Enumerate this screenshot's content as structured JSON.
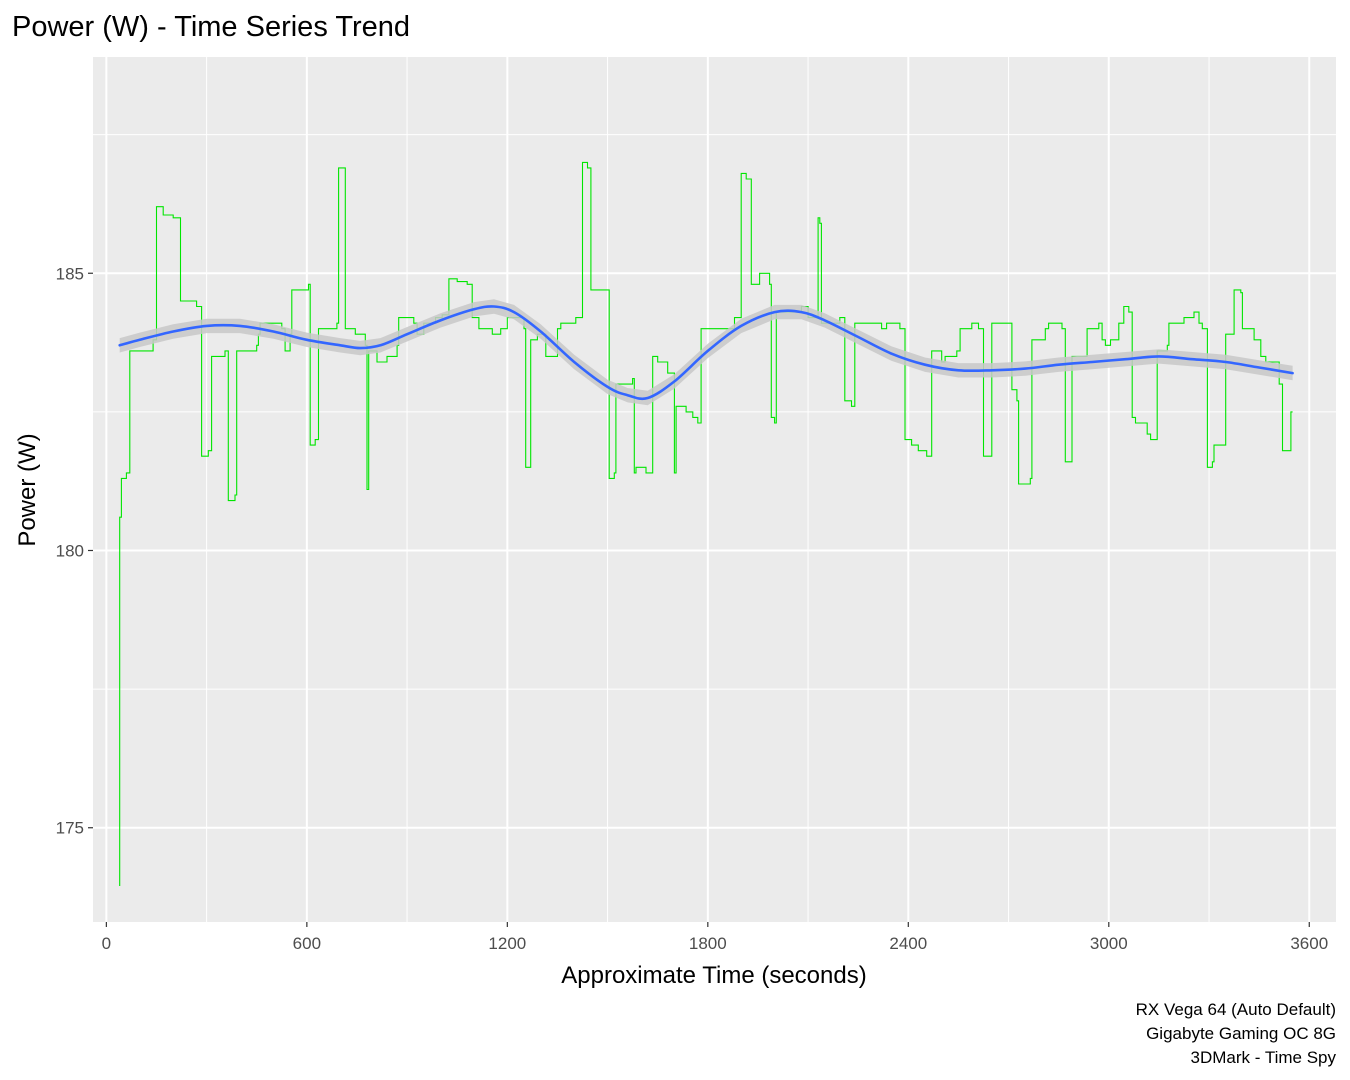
{
  "chart_data": {
    "type": "line",
    "title": "Power (W) - Time Series Trend",
    "xlabel": "Approximate Time (seconds)",
    "ylabel": "Power (W)",
    "xlim": [
      -40,
      3680
    ],
    "ylim": [
      173.3,
      188.9
    ],
    "x_ticks": [
      0,
      600,
      1200,
      1800,
      2400,
      3000,
      3600
    ],
    "y_ticks": [
      175,
      180,
      185
    ],
    "grid": true,
    "caption": [
      "RX Vega 64 (Auto Default)",
      "Gigabyte Gaming OC 8G",
      "3DMark - Time Spy"
    ],
    "colors": {
      "panel": "#ebebeb",
      "grid": "#ffffff",
      "raw_line": "#00e600",
      "trend_line": "#3366ff",
      "ribbon": "#c8c8c8"
    },
    "series": [
      {
        "style": "step",
        "points": [
          [
            40,
            173.95
          ],
          [
            40,
            180.6
          ],
          [
            45,
            181.3
          ],
          [
            60,
            181.4
          ],
          [
            70,
            183.6
          ],
          [
            140,
            183.8
          ],
          [
            150,
            186.2
          ],
          [
            170,
            186.05
          ],
          [
            200,
            186.0
          ],
          [
            222,
            184.5
          ],
          [
            270,
            184.4
          ],
          [
            285,
            181.7
          ],
          [
            305,
            181.8
          ],
          [
            315,
            183.5
          ],
          [
            355,
            183.6
          ],
          [
            365,
            180.9
          ],
          [
            385,
            181.0
          ],
          [
            390,
            183.6
          ],
          [
            450,
            183.7
          ],
          [
            455,
            183.9
          ],
          [
            460,
            184.1
          ],
          [
            525,
            184.0
          ],
          [
            535,
            183.6
          ],
          [
            550,
            183.9
          ],
          [
            555,
            184.7
          ],
          [
            605,
            184.8
          ],
          [
            610,
            181.9
          ],
          [
            625,
            182.0
          ],
          [
            635,
            184.0
          ],
          [
            690,
            184.1
          ],
          [
            695,
            186.9
          ],
          [
            705,
            186.9
          ],
          [
            715,
            184.0
          ],
          [
            745,
            183.9
          ],
          [
            775,
            183.7
          ],
          [
            780,
            181.1
          ],
          [
            785,
            183.6
          ],
          [
            800,
            183.6
          ],
          [
            810,
            183.4
          ],
          [
            840,
            183.5
          ],
          [
            870,
            183.7
          ],
          [
            875,
            184.2
          ],
          [
            920,
            184.1
          ],
          [
            930,
            183.9
          ],
          [
            950,
            184.1
          ],
          [
            985,
            184.2
          ],
          [
            1005,
            184.25
          ],
          [
            1025,
            184.9
          ],
          [
            1050,
            184.85
          ],
          [
            1080,
            184.8
          ],
          [
            1095,
            184.2
          ],
          [
            1115,
            184.0
          ],
          [
            1155,
            183.9
          ],
          [
            1180,
            184.0
          ],
          [
            1200,
            184.2
          ],
          [
            1250,
            184.0
          ],
          [
            1255,
            181.5
          ],
          [
            1265,
            181.5
          ],
          [
            1270,
            183.8
          ],
          [
            1290,
            183.9
          ],
          [
            1315,
            183.5
          ],
          [
            1350,
            184.0
          ],
          [
            1360,
            184.1
          ],
          [
            1405,
            184.2
          ],
          [
            1425,
            187.0
          ],
          [
            1440,
            186.9
          ],
          [
            1450,
            184.7
          ],
          [
            1500,
            184.7
          ],
          [
            1505,
            181.3
          ],
          [
            1520,
            181.4
          ],
          [
            1525,
            183.0
          ],
          [
            1575,
            183.1
          ],
          [
            1580,
            181.4
          ],
          [
            1585,
            181.5
          ],
          [
            1615,
            181.4
          ],
          [
            1635,
            183.5
          ],
          [
            1650,
            183.4
          ],
          [
            1680,
            183.2
          ],
          [
            1700,
            181.4
          ],
          [
            1705,
            182.6
          ],
          [
            1730,
            182.6
          ],
          [
            1735,
            182.5
          ],
          [
            1755,
            182.4
          ],
          [
            1770,
            182.3
          ],
          [
            1780,
            184.0
          ],
          [
            1830,
            184.0
          ],
          [
            1880,
            184.2
          ],
          [
            1900,
            186.8
          ],
          [
            1915,
            186.7
          ],
          [
            1930,
            184.8
          ],
          [
            1955,
            185.0
          ],
          [
            1985,
            184.8
          ],
          [
            1990,
            182.4
          ],
          [
            2000,
            182.3
          ],
          [
            2005,
            184.3
          ],
          [
            2080,
            184.4
          ],
          [
            2100,
            184.2
          ],
          [
            2130,
            186.0
          ],
          [
            2135,
            185.9
          ],
          [
            2140,
            184.1
          ],
          [
            2195,
            184.2
          ],
          [
            2210,
            182.7
          ],
          [
            2230,
            182.6
          ],
          [
            2240,
            184.1
          ],
          [
            2300,
            184.1
          ],
          [
            2320,
            184.0
          ],
          [
            2335,
            184.1
          ],
          [
            2375,
            184.0
          ],
          [
            2390,
            182.0
          ],
          [
            2410,
            181.9
          ],
          [
            2430,
            181.8
          ],
          [
            2455,
            181.7
          ],
          [
            2470,
            183.6
          ],
          [
            2500,
            183.4
          ],
          [
            2510,
            183.5
          ],
          [
            2545,
            183.6
          ],
          [
            2555,
            184.0
          ],
          [
            2590,
            184.1
          ],
          [
            2610,
            184.0
          ],
          [
            2625,
            181.7
          ],
          [
            2640,
            181.7
          ],
          [
            2650,
            184.1
          ],
          [
            2690,
            184.1
          ],
          [
            2710,
            182.9
          ],
          [
            2725,
            182.7
          ],
          [
            2730,
            181.2
          ],
          [
            2765,
            181.3
          ],
          [
            2770,
            183.8
          ],
          [
            2810,
            184.0
          ],
          [
            2820,
            184.1
          ],
          [
            2860,
            184.0
          ],
          [
            2870,
            181.6
          ],
          [
            2885,
            181.6
          ],
          [
            2890,
            183.5
          ],
          [
            2930,
            183.5
          ],
          [
            2935,
            184.0
          ],
          [
            2970,
            184.1
          ],
          [
            2980,
            183.8
          ],
          [
            2990,
            183.7
          ],
          [
            3005,
            183.8
          ],
          [
            3030,
            184.1
          ],
          [
            3045,
            184.4
          ],
          [
            3060,
            184.3
          ],
          [
            3070,
            182.4
          ],
          [
            3080,
            182.3
          ],
          [
            3100,
            182.3
          ],
          [
            3115,
            182.1
          ],
          [
            3125,
            182.0
          ],
          [
            3140,
            182.0
          ],
          [
            3145,
            183.6
          ],
          [
            3175,
            183.7
          ],
          [
            3180,
            184.1
          ],
          [
            3210,
            184.1
          ],
          [
            3225,
            184.2
          ],
          [
            3255,
            184.3
          ],
          [
            3270,
            184.1
          ],
          [
            3280,
            184.0
          ],
          [
            3295,
            181.5
          ],
          [
            3310,
            181.6
          ],
          [
            3315,
            181.9
          ],
          [
            3335,
            181.9
          ],
          [
            3350,
            183.9
          ],
          [
            3370,
            183.9
          ],
          [
            3375,
            184.7
          ],
          [
            3395,
            184.65
          ],
          [
            3400,
            184.0
          ],
          [
            3425,
            184.0
          ],
          [
            3435,
            183.8
          ],
          [
            3445,
            183.8
          ],
          [
            3455,
            183.5
          ],
          [
            3470,
            183.4
          ],
          [
            3500,
            183.4
          ],
          [
            3510,
            183.0
          ],
          [
            3520,
            181.8
          ],
          [
            3540,
            181.8
          ],
          [
            3545,
            182.5
          ],
          [
            3550,
            182.5
          ]
        ]
      },
      {
        "style": "smooth",
        "ribbon": true,
        "points": [
          [
            40,
            183.7
          ],
          [
            100,
            183.8
          ],
          [
            200,
            183.95
          ],
          [
            300,
            184.05
          ],
          [
            400,
            184.05
          ],
          [
            500,
            183.95
          ],
          [
            600,
            183.8
          ],
          [
            700,
            183.7
          ],
          [
            760,
            183.65
          ],
          [
            820,
            183.7
          ],
          [
            900,
            183.9
          ],
          [
            1000,
            184.15
          ],
          [
            1100,
            184.35
          ],
          [
            1160,
            184.4
          ],
          [
            1220,
            184.3
          ],
          [
            1300,
            183.95
          ],
          [
            1400,
            183.4
          ],
          [
            1500,
            182.95
          ],
          [
            1560,
            182.8
          ],
          [
            1620,
            182.75
          ],
          [
            1700,
            183.05
          ],
          [
            1800,
            183.6
          ],
          [
            1900,
            184.05
          ],
          [
            2000,
            184.3
          ],
          [
            2080,
            184.3
          ],
          [
            2150,
            184.15
          ],
          [
            2250,
            183.85
          ],
          [
            2350,
            183.55
          ],
          [
            2450,
            183.35
          ],
          [
            2550,
            183.25
          ],
          [
            2650,
            183.25
          ],
          [
            2750,
            183.28
          ],
          [
            2850,
            183.35
          ],
          [
            2950,
            183.4
          ],
          [
            3050,
            183.45
          ],
          [
            3150,
            183.5
          ],
          [
            3250,
            183.45
          ],
          [
            3350,
            183.4
          ],
          [
            3450,
            183.3
          ],
          [
            3550,
            183.2
          ]
        ]
      }
    ]
  }
}
